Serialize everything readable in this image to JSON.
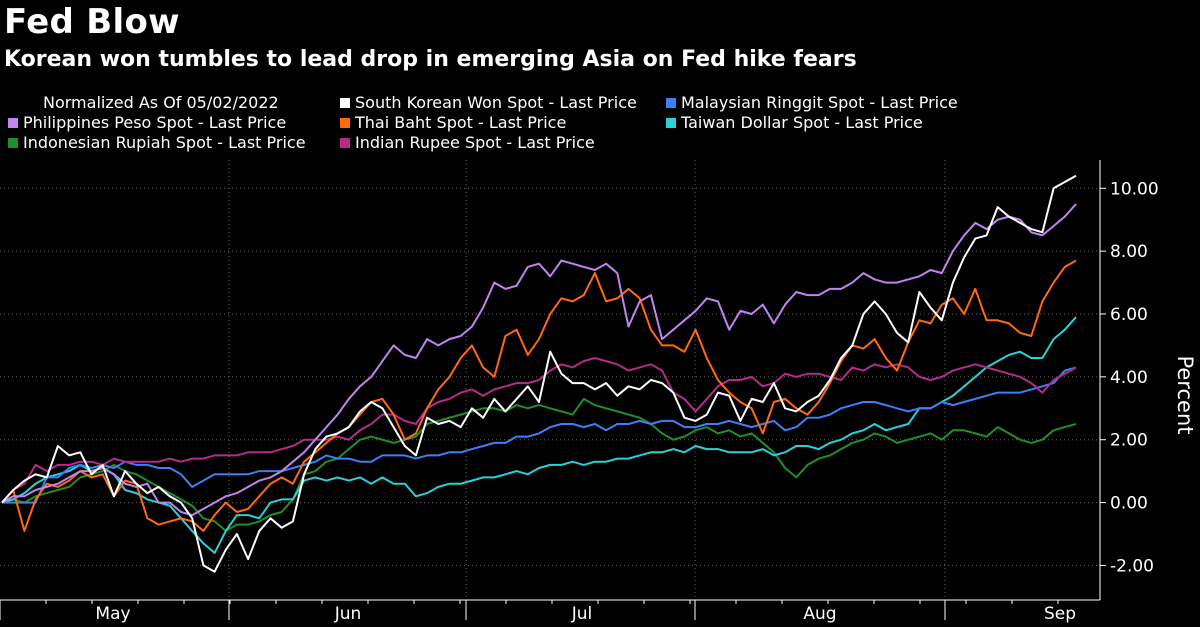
{
  "header": {
    "title": "Fed Blow",
    "subtitle": "Korean won tumbles to lead drop in emerging Asia on Fed hike fears"
  },
  "legend": {
    "note": "Normalized As Of 05/02/2022"
  },
  "colors": {
    "background": "#000000",
    "grid": "#666666",
    "axis": "#ffffff"
  },
  "chart_data": {
    "type": "line",
    "title": "Fed Blow",
    "subtitle": "Korean won tumbles to lead drop in emerging Asia on Fed hike fears",
    "ylabel": "Percent",
    "xlabel": "",
    "x_tick_labels": [
      "May",
      "Jun",
      "Jul",
      "Aug",
      "Sep"
    ],
    "y_ticks": [
      -2,
      0,
      2,
      4,
      6,
      8,
      10
    ],
    "y_tick_labels": [
      "-2.00",
      "0.00",
      "2.00",
      "4.00",
      "6.00",
      "8.00",
      "10.00"
    ],
    "ylim": [
      -3.1,
      10.9
    ],
    "grid": true,
    "legend_position": "top",
    "series": [
      {
        "name": "South Korean Won Spot - Last Price",
        "color": "#ffffff",
        "values": [
          0,
          0.4,
          0.7,
          0.9,
          0.8,
          1.8,
          1.5,
          1.6,
          0.9,
          1.2,
          0.2,
          1.0,
          0.6,
          0.3,
          0.5,
          0.2,
          0.0,
          -0.5,
          -2.0,
          -2.2,
          -1.5,
          -1.0,
          -1.8,
          -0.9,
          -0.5,
          -0.8,
          -0.6,
          0.9,
          1.7,
          2.1,
          2.2,
          2.4,
          2.9,
          3.2,
          3.0,
          2.4,
          1.8,
          1.5,
          2.7,
          2.5,
          2.6,
          2.4,
          3.0,
          2.7,
          3.3,
          2.9,
          3.3,
          3.7,
          3.2,
          4.8,
          4.1,
          3.8,
          3.8,
          3.6,
          3.8,
          3.4,
          3.7,
          3.6,
          3.9,
          3.8,
          3.5,
          2.7,
          2.6,
          2.8,
          3.5,
          3.4,
          2.6,
          3.3,
          3.2,
          3.8,
          3.0,
          2.9,
          3.2,
          3.4,
          3.9,
          4.6,
          5.0,
          6.0,
          6.4,
          6.0,
          5.4,
          5.1,
          6.7,
          6.2,
          5.8,
          7.0,
          7.8,
          8.4,
          8.5,
          9.4,
          9.1,
          8.9,
          8.7,
          8.6,
          10.0,
          10.2,
          10.4
        ]
      },
      {
        "name": "Malaysian Ringgit Spot - Last Price",
        "color": "#3d7ff5",
        "values": [
          0,
          0.0,
          0.0,
          0.0,
          0.8,
          0.8,
          1.1,
          1.2,
          1.1,
          1.2,
          1.1,
          1.3,
          1.2,
          1.2,
          1.1,
          1.1,
          0.9,
          0.5,
          0.7,
          0.9,
          0.9,
          0.9,
          0.9,
          1.0,
          1.0,
          1.0,
          1.1,
          1.2,
          1.3,
          1.5,
          1.4,
          1.4,
          1.3,
          1.3,
          1.5,
          1.5,
          1.5,
          1.4,
          1.5,
          1.5,
          1.6,
          1.6,
          1.7,
          1.8,
          1.9,
          1.9,
          2.1,
          2.1,
          2.2,
          2.4,
          2.5,
          2.5,
          2.4,
          2.5,
          2.3,
          2.5,
          2.5,
          2.6,
          2.5,
          2.6,
          2.6,
          2.4,
          2.4,
          2.5,
          2.5,
          2.6,
          2.5,
          2.4,
          2.5,
          2.6,
          2.3,
          2.4,
          2.7,
          2.7,
          2.8,
          3.0,
          3.1,
          3.2,
          3.2,
          3.1,
          3.0,
          2.9,
          3.0,
          3.0,
          3.2,
          3.1,
          3.2,
          3.3,
          3.4,
          3.5,
          3.5,
          3.5,
          3.6,
          3.7,
          3.8,
          4.2,
          4.3
        ]
      },
      {
        "name": "Philippines Peso Spot - Last Price",
        "color": "#c084f0",
        "values": [
          0,
          0.2,
          0.2,
          0.4,
          0.5,
          0.6,
          0.8,
          1.0,
          1.0,
          1.1,
          0.9,
          0.6,
          0.5,
          0.6,
          0.0,
          0.0,
          -0.3,
          -0.4,
          -0.2,
          0.0,
          0.2,
          0.3,
          0.5,
          0.7,
          0.8,
          1.0,
          1.3,
          1.6,
          2.0,
          2.4,
          2.8,
          3.3,
          3.7,
          4.0,
          4.5,
          5.0,
          4.7,
          4.6,
          5.2,
          5.0,
          5.2,
          5.3,
          5.6,
          6.2,
          7.0,
          6.8,
          6.9,
          7.5,
          7.6,
          7.2,
          7.7,
          7.6,
          7.5,
          7.4,
          7.6,
          7.3,
          5.6,
          6.4,
          6.6,
          5.2,
          5.5,
          5.8,
          6.1,
          6.5,
          6.4,
          5.5,
          6.1,
          6.0,
          6.3,
          5.7,
          6.3,
          6.7,
          6.6,
          6.6,
          6.8,
          6.8,
          7.0,
          7.3,
          7.1,
          7.0,
          7.0,
          7.1,
          7.2,
          7.4,
          7.3,
          8.0,
          8.5,
          8.9,
          8.7,
          9.0,
          9.1,
          9.0,
          8.6,
          8.5,
          8.8,
          9.1,
          9.5
        ]
      },
      {
        "name": "Thai Baht Spot - Last Price",
        "color": "#ff6a10",
        "values": [
          0,
          0.4,
          -0.9,
          0.1,
          0.6,
          0.5,
          0.7,
          1.0,
          0.8,
          0.9,
          0.2,
          0.7,
          0.6,
          -0.5,
          -0.7,
          -0.6,
          -0.5,
          -0.6,
          -0.9,
          -0.4,
          0.0,
          -0.3,
          -0.2,
          0.2,
          0.6,
          0.8,
          0.6,
          1.3,
          1.6,
          1.9,
          2.2,
          2.4,
          2.8,
          3.2,
          3.3,
          2.8,
          2.0,
          2.2,
          3.0,
          3.6,
          4.0,
          4.6,
          5.0,
          4.3,
          4.0,
          5.3,
          5.5,
          4.7,
          5.2,
          6.0,
          6.5,
          6.4,
          6.6,
          7.3,
          6.4,
          6.5,
          6.8,
          6.5,
          5.5,
          5.0,
          5.0,
          4.8,
          5.5,
          4.6,
          3.9,
          3.5,
          3.2,
          3.0,
          2.2,
          3.2,
          3.3,
          3.0,
          2.8,
          3.2,
          3.8,
          4.5,
          5.0,
          4.9,
          5.2,
          4.6,
          4.2,
          5.1,
          5.8,
          5.7,
          6.3,
          6.5,
          6.0,
          6.8,
          5.8,
          5.8,
          5.7,
          5.4,
          5.3,
          6.4,
          7.0,
          7.5,
          7.7
        ]
      },
      {
        "name": "Taiwan Dollar Spot - Last Price",
        "color": "#28d2d8",
        "values": [
          0,
          0.1,
          0.3,
          0.6,
          0.8,
          0.9,
          1.0,
          1.2,
          1.0,
          1.1,
          0.9,
          0.4,
          0.3,
          0.1,
          0.0,
          -0.1,
          -0.5,
          -0.9,
          -1.3,
          -1.6,
          -0.9,
          -0.4,
          -0.4,
          -0.5,
          0.0,
          0.1,
          0.1,
          0.7,
          0.8,
          0.7,
          0.8,
          0.7,
          0.8,
          0.6,
          0.8,
          0.6,
          0.6,
          0.2,
          0.3,
          0.5,
          0.6,
          0.6,
          0.7,
          0.8,
          0.8,
          0.9,
          1.0,
          0.9,
          1.1,
          1.2,
          1.2,
          1.3,
          1.2,
          1.3,
          1.3,
          1.4,
          1.4,
          1.5,
          1.6,
          1.6,
          1.7,
          1.6,
          1.8,
          1.7,
          1.7,
          1.6,
          1.6,
          1.6,
          1.7,
          1.5,
          1.6,
          1.8,
          1.8,
          1.7,
          1.9,
          2.0,
          2.2,
          2.3,
          2.5,
          2.3,
          2.4,
          2.5,
          3.0,
          3.0,
          3.2,
          3.4,
          3.7,
          4.0,
          4.3,
          4.5,
          4.7,
          4.8,
          4.6,
          4.6,
          5.2,
          5.5,
          5.9
        ]
      },
      {
        "name": "Indonesian Rupiah Spot - Last Price",
        "color": "#1f8f2a",
        "values": [
          0,
          0.1,
          0.0,
          0.2,
          0.3,
          0.4,
          0.5,
          0.8,
          0.9,
          1.0,
          1.2,
          1.0,
          0.9,
          0.7,
          0.5,
          0.3,
          0.1,
          -0.1,
          -0.5,
          -0.6,
          -0.9,
          -0.7,
          -0.7,
          -0.6,
          -0.4,
          -0.3,
          0.1,
          0.9,
          1.0,
          1.3,
          1.4,
          1.7,
          2.0,
          2.1,
          2.0,
          1.9,
          2.0,
          2.1,
          2.5,
          2.6,
          2.7,
          2.8,
          2.9,
          3.0,
          3.0,
          2.9,
          3.1,
          3.0,
          3.1,
          3.0,
          2.9,
          2.8,
          3.3,
          3.1,
          3.0,
          2.9,
          2.8,
          2.7,
          2.5,
          2.2,
          2.0,
          2.1,
          2.3,
          2.4,
          2.2,
          2.3,
          2.1,
          2.2,
          1.9,
          1.6,
          1.1,
          0.8,
          1.2,
          1.4,
          1.5,
          1.7,
          1.9,
          2.0,
          2.2,
          2.1,
          1.9,
          2.0,
          2.1,
          2.2,
          2.0,
          2.3,
          2.3,
          2.2,
          2.1,
          2.4,
          2.2,
          2.0,
          1.9,
          2.0,
          2.3,
          2.4,
          2.5
        ]
      },
      {
        "name": "Indian Rupee Spot - Last Price",
        "color": "#b52b8a",
        "values": [
          0,
          0.4,
          0.6,
          1.2,
          1.0,
          1.2,
          1.2,
          1.3,
          1.3,
          1.2,
          1.4,
          1.3,
          1.3,
          1.3,
          1.3,
          1.4,
          1.3,
          1.4,
          1.4,
          1.5,
          1.5,
          1.5,
          1.6,
          1.6,
          1.6,
          1.7,
          1.8,
          2.0,
          2.0,
          2.0,
          2.1,
          2.0,
          2.3,
          2.5,
          2.8,
          2.8,
          2.6,
          2.5,
          3.0,
          3.2,
          3.3,
          3.5,
          3.6,
          3.4,
          3.6,
          3.7,
          3.8,
          3.8,
          3.9,
          4.2,
          4.4,
          4.3,
          4.5,
          4.6,
          4.5,
          4.4,
          4.2,
          4.3,
          4.4,
          4.2,
          3.5,
          3.3,
          2.9,
          3.3,
          3.7,
          3.9,
          3.9,
          4.0,
          3.7,
          3.8,
          4.1,
          4.0,
          4.1,
          4.1,
          4.0,
          3.9,
          4.3,
          4.2,
          4.4,
          4.3,
          4.4,
          4.3,
          4.0,
          3.9,
          4.0,
          4.2,
          4.3,
          4.4,
          4.3,
          4.2,
          4.1,
          4.0,
          3.8,
          3.5,
          3.9,
          4.1,
          4.3
        ]
      }
    ]
  }
}
